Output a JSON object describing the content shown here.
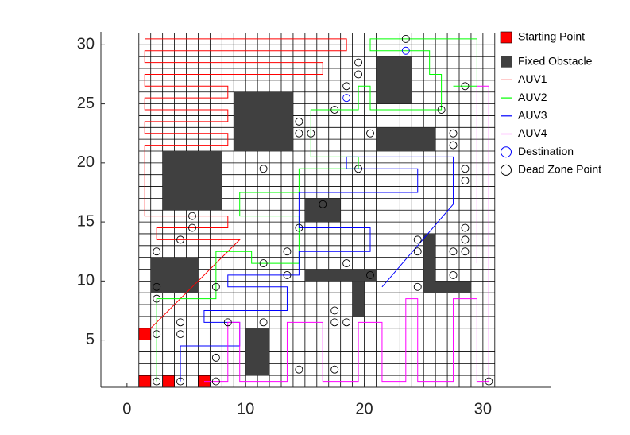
{
  "chart_data": {
    "type": "path_map",
    "xlim": [
      -2.2,
      35.7
    ],
    "ylim": [
      1,
      31.1
    ],
    "xticks": [
      0,
      10,
      20,
      30
    ],
    "yticks": [
      5,
      10,
      15,
      20,
      25,
      30
    ],
    "map_extent": [
      1,
      31
    ],
    "starting_points": {
      "name": "Starting Point",
      "color": "#ff0000",
      "x": [
        1,
        3,
        6,
        1
      ],
      "y": [
        1,
        1,
        1,
        5
      ]
    },
    "obstacles": {
      "name": "Fixed Obstacle",
      "color": "#404040",
      "rects": [
        [
          3,
          16,
          8,
          21
        ],
        [
          2,
          9,
          6,
          12
        ],
        [
          9,
          21,
          14,
          26
        ],
        [
          21,
          25,
          24,
          29
        ],
        [
          21,
          21,
          26,
          23
        ],
        [
          15,
          15,
          18,
          17
        ],
        [
          15,
          10,
          21,
          11
        ],
        [
          19,
          7,
          20,
          10
        ],
        [
          25,
          9,
          26,
          14
        ],
        [
          25,
          9,
          29,
          10
        ],
        [
          10,
          2,
          12,
          6
        ]
      ]
    },
    "series": [
      {
        "name": "AUV1",
        "color": "#ff0000",
        "x": [
          1.5,
          9.5,
          2.5,
          2.5,
          8.5,
          8.5,
          1.5,
          1.5,
          8.5,
          8.5,
          1.5,
          1.5,
          8.5,
          8.5,
          1.5,
          1.5,
          8.5,
          8.5,
          1.5,
          1.5,
          16.5,
          16.5,
          1.5,
          1.5,
          18.5,
          18.5,
          1.5
        ],
        "y": [
          5.5,
          13.5,
          13.5,
          14.5,
          14.5,
          15.5,
          15.5,
          21.5,
          21.5,
          22.5,
          22.5,
          23.5,
          23.5,
          24.5,
          24.5,
          25.5,
          25.5,
          26.5,
          26.5,
          27.5,
          27.5,
          28.5,
          28.5,
          29.5,
          29.5,
          30.5,
          30.5
        ]
      },
      {
        "name": "AUV2",
        "color": "#00ff00",
        "x": [
          2.5,
          2.5,
          7.5,
          7.5,
          10.5,
          10.5,
          14.5,
          14.5,
          9.5,
          9.5,
          14.5,
          14.5,
          19.5,
          19.5,
          15.5,
          15.5,
          19.5,
          19.5,
          20.5,
          20.5,
          26.5,
          26.5,
          25.5,
          25.5,
          20.5,
          20.5,
          29.5,
          29.5,
          27.5
        ],
        "y": [
          1.5,
          8.5,
          8.5,
          12.5,
          12.5,
          11.5,
          11.5,
          15.5,
          15.5,
          17.5,
          17.5,
          19.5,
          19.5,
          20.5,
          20.5,
          24.5,
          24.5,
          26.5,
          26.5,
          24.5,
          24.5,
          27.5,
          27.5,
          29.5,
          29.5,
          30.5,
          30.5,
          26.5,
          26.5
        ]
      },
      {
        "name": "AUV3",
        "color": "#0000ff",
        "x": [
          4.5,
          4.5,
          9.5,
          9.5,
          6.5,
          6.5,
          13.5,
          13.5,
          8.5,
          8.5,
          14.5,
          14.5,
          20.5,
          20.5,
          14.5,
          14.5,
          24.5,
          24.5,
          18.5,
          18.5,
          27.5,
          27.5,
          21.5
        ],
        "y": [
          1.5,
          4.5,
          4.5,
          6.5,
          6.5,
          7.5,
          7.5,
          9.5,
          9.5,
          10.5,
          10.5,
          12.5,
          12.5,
          14.5,
          14.5,
          17.5,
          17.5,
          19.5,
          19.5,
          20.5,
          20.5,
          16.5,
          9.5
        ]
      },
      {
        "name": "AUV4",
        "color": "#ff00ff",
        "x": [
          6.5,
          8.5,
          8.5,
          9.5,
          9.5,
          13.5,
          13.5,
          16.5,
          16.5,
          19.5,
          19.5,
          21.5,
          21.5,
          23.5,
          23.5,
          24.5,
          24.5,
          27.5,
          27.5,
          29.5,
          29.5,
          30.5,
          30.5,
          29.5,
          29.5
        ],
        "y": [
          1.5,
          1.5,
          6.5,
          6.5,
          1.5,
          1.5,
          6.5,
          6.5,
          1.5,
          1.5,
          6.5,
          6.5,
          1.5,
          1.5,
          8.5,
          8.5,
          1.5,
          1.5,
          8.5,
          8.5,
          1.5,
          1.5,
          26.5,
          26.5,
          11.5
        ]
      }
    ],
    "destinations": {
      "name": "Destination",
      "color": "#0000ff",
      "x": [
        23.5,
        18.5
      ],
      "y": [
        29.5,
        25.5
      ]
    },
    "dead_zones": {
      "name": "Dead Zone Point",
      "color": "#000000",
      "x": [
        2.5,
        4.5,
        7.5,
        30.5,
        7.5,
        14.5,
        17.5,
        2.5,
        4.5,
        4.5,
        8.5,
        11.5,
        17.5,
        18.5,
        17.5,
        2.5,
        2.5,
        7.5,
        13.5,
        20.5,
        24.5,
        27.5,
        2.5,
        11.5,
        13.5,
        18.5,
        24.5,
        24.5,
        27.5,
        28.5,
        28.5,
        28.5,
        5.5,
        4.5,
        5.5,
        14.5,
        16.5,
        11.5,
        19.5,
        28.5,
        28.5,
        27.5,
        27.5,
        26.5,
        28.5,
        14.5,
        14.5,
        15.5,
        17.5,
        20.5,
        18.5,
        19.5,
        19.5,
        23.5
      ],
      "y": [
        1.5,
        1.5,
        1.5,
        1.5,
        3.5,
        2.5,
        2.5,
        5.5,
        5.5,
        6.5,
        6.5,
        6.5,
        6.5,
        6.5,
        7.5,
        8.5,
        9.5,
        9.5,
        10.5,
        10.5,
        9.5,
        10.5,
        12.5,
        11.5,
        12.5,
        11.5,
        13.5,
        12.5,
        12.5,
        12.5,
        13.5,
        14.5,
        14.5,
        13.5,
        15.5,
        14.5,
        16.5,
        19.5,
        19.5,
        19.5,
        18.5,
        21.5,
        22.5,
        24.5,
        26.5,
        23.5,
        22.5,
        22.5,
        24.5,
        22.5,
        26.5,
        27.5,
        28.5,
        30.5
      ]
    }
  }
}
